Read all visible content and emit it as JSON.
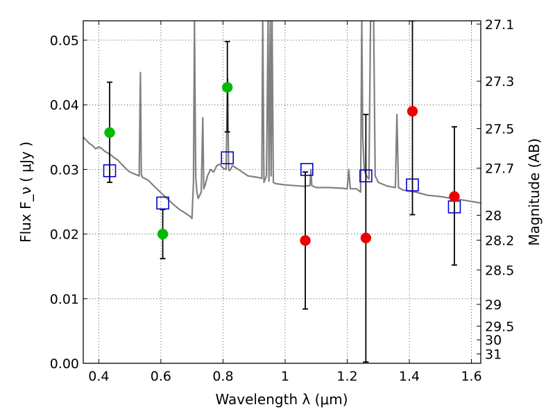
{
  "chart_data": {
    "type": "scatter",
    "xlabel": "Wavelength  λ (μm)",
    "ylabel": "Flux  F_ν  ( μJy )",
    "ylabel_right": "Magnitude (AB)",
    "xlim": [
      0.35,
      1.63
    ],
    "ylim": [
      0.0,
      0.053
    ],
    "grid": true,
    "x_ticks": [
      {
        "value": 0.4,
        "label": "0.4"
      },
      {
        "value": 0.6,
        "label": "0.6"
      },
      {
        "value": 0.8,
        "label": "0.8"
      },
      {
        "value": 1.0,
        "label": "1"
      },
      {
        "value": 1.2,
        "label": "1.2"
      },
      {
        "value": 1.4,
        "label": "1.4"
      },
      {
        "value": 1.6,
        "label": "1.6"
      }
    ],
    "y_ticks": [
      {
        "value": 0.0,
        "label": "0.00"
      },
      {
        "value": 0.01,
        "label": "0.01"
      },
      {
        "value": 0.02,
        "label": "0.02"
      },
      {
        "value": 0.03,
        "label": "0.03"
      },
      {
        "value": 0.04,
        "label": "0.04"
      },
      {
        "value": 0.05,
        "label": "0.05"
      }
    ],
    "mag_ticks": [
      {
        "value": 27.1,
        "label": "27.1"
      },
      {
        "value": 27.3,
        "label": "27.3"
      },
      {
        "value": 27.5,
        "label": "27.5"
      },
      {
        "value": 27.7,
        "label": "27.7"
      },
      {
        "value": 28.0,
        "label": "28"
      },
      {
        "value": 28.2,
        "label": "28.2"
      },
      {
        "value": 28.5,
        "label": "28.5"
      },
      {
        "value": 29.0,
        "label": "29"
      },
      {
        "value": 29.5,
        "label": "29.5"
      },
      {
        "value": 30.0,
        "label": "30"
      },
      {
        "value": 31.0,
        "label": "31"
      }
    ],
    "series": [
      {
        "kind": "spectrum",
        "color": "#808080",
        "x": [
          0.35,
          0.36,
          0.37,
          0.38,
          0.39,
          0.4,
          0.41,
          0.42,
          0.43,
          0.44,
          0.45,
          0.46,
          0.47,
          0.48,
          0.49,
          0.5,
          0.51,
          0.52,
          0.53,
          0.534,
          0.537,
          0.54,
          0.56,
          0.58,
          0.6,
          0.62,
          0.64,
          0.66,
          0.68,
          0.695,
          0.7,
          0.705,
          0.708,
          0.712,
          0.716,
          0.72,
          0.73,
          0.735,
          0.738,
          0.742,
          0.75,
          0.76,
          0.77,
          0.78,
          0.79,
          0.8,
          0.81,
          0.815,
          0.818,
          0.822,
          0.83,
          0.85,
          0.88,
          0.91,
          0.925,
          0.928,
          0.932,
          0.94,
          0.945,
          0.948,
          0.952,
          0.955,
          0.958,
          0.962,
          0.97,
          1.0,
          1.03,
          1.06,
          1.08,
          1.083,
          1.086,
          1.1,
          1.14,
          1.18,
          1.2,
          1.205,
          1.21,
          1.23,
          1.243,
          1.247,
          1.25,
          1.255,
          1.262,
          1.27,
          1.275,
          1.28,
          1.285,
          1.29,
          1.3,
          1.33,
          1.355,
          1.36,
          1.365,
          1.38,
          1.42,
          1.46,
          1.5,
          1.54,
          1.58,
          1.63
        ],
        "y": [
          0.035,
          0.0345,
          0.034,
          0.0337,
          0.0332,
          0.0335,
          0.0332,
          0.0328,
          0.0325,
          0.0322,
          0.0318,
          0.0315,
          0.031,
          0.0305,
          0.03,
          0.0296,
          0.0294,
          0.0292,
          0.029,
          0.045,
          0.0292,
          0.0288,
          0.0283,
          0.0273,
          0.0264,
          0.0255,
          0.0246,
          0.0238,
          0.0232,
          0.0227,
          0.0224,
          0.028,
          0.053,
          0.029,
          0.0265,
          0.0255,
          0.0265,
          0.038,
          0.027,
          0.0275,
          0.029,
          0.03,
          0.0296,
          0.0306,
          0.0308,
          0.0302,
          0.03,
          0.044,
          0.03,
          0.0298,
          0.0306,
          0.03,
          0.029,
          0.0288,
          0.0286,
          0.053,
          0.028,
          0.029,
          0.053,
          0.0282,
          0.053,
          0.029,
          0.053,
          0.028,
          0.0278,
          0.0276,
          0.0275,
          0.0274,
          0.0275,
          0.03,
          0.0275,
          0.0272,
          0.0272,
          0.0271,
          0.027,
          0.03,
          0.027,
          0.027,
          0.0265,
          0.053,
          0.035,
          0.03,
          0.029,
          0.0285,
          0.053,
          0.053,
          0.053,
          0.029,
          0.028,
          0.0274,
          0.0272,
          0.0385,
          0.0272,
          0.0268,
          0.0265,
          0.026,
          0.0258,
          0.0255,
          0.0252,
          0.0248
        ]
      },
      {
        "kind": "model-photometry",
        "marker": "open-square",
        "color": "#0000cc",
        "x": [
          0.435,
          0.606,
          0.814,
          1.07,
          1.26,
          1.41,
          1.545
        ],
        "y": [
          0.0298,
          0.0248,
          0.0318,
          0.03,
          0.029,
          0.0276,
          0.0242
        ]
      },
      {
        "kind": "detections",
        "marker": "filled-circle",
        "color": "#00bb00",
        "x": [
          0.435,
          0.606,
          0.814
        ],
        "y": [
          0.0357,
          0.02,
          0.0427
        ],
        "yerr_low": [
          0.028,
          0.0162,
          0.0358
        ],
        "yerr_high": [
          0.0435,
          0.0238,
          0.0498
        ]
      },
      {
        "kind": "non-detections",
        "marker": "filled-circle",
        "color": "#ee0000",
        "x": [
          1.065,
          1.26,
          1.41,
          1.545
        ],
        "y": [
          0.019,
          0.0194,
          0.039,
          0.0258
        ],
        "yerr_low": [
          0.0084,
          0.0002,
          0.023,
          0.0152
        ],
        "yerr_high": [
          0.0296,
          0.0385,
          0.053,
          0.0366
        ]
      }
    ]
  }
}
